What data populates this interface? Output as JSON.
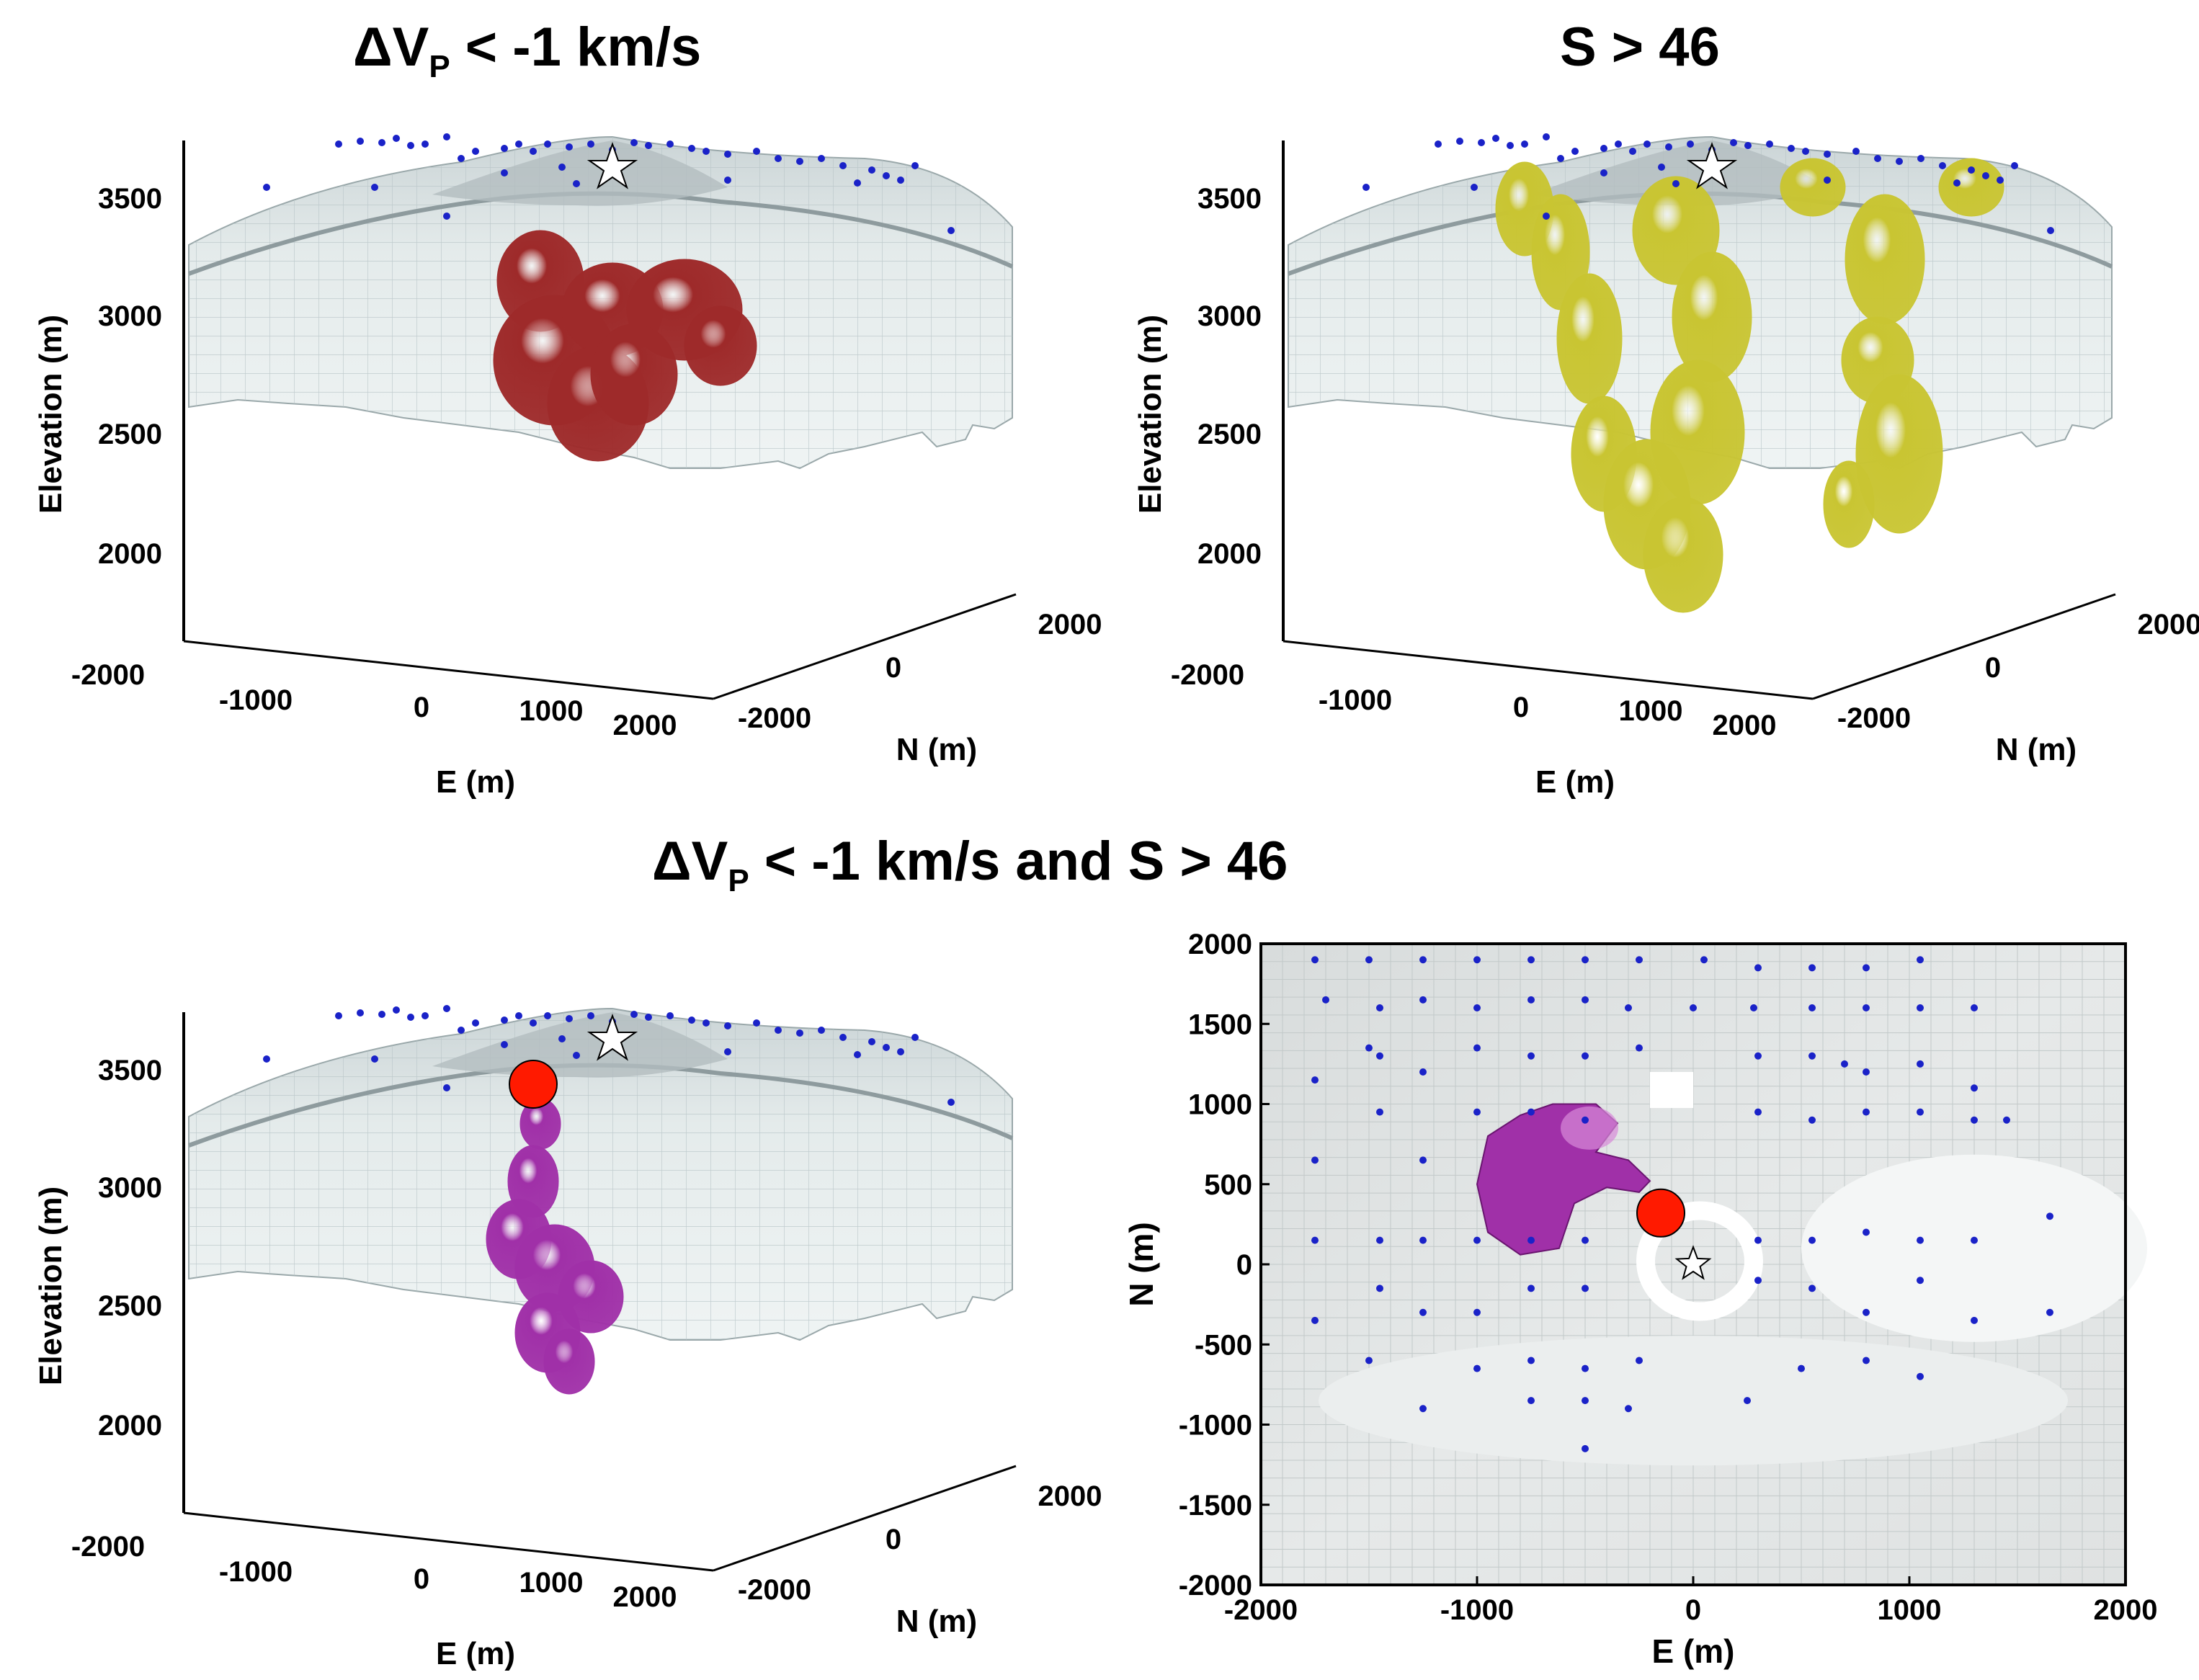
{
  "titles": {
    "top_left": "ΔV",
    "top_left_sub": "P",
    "top_left_rest": " < -1 km/s",
    "top_right": "S > 46",
    "bottom_left": "ΔV",
    "bottom_left_sub": "P",
    "bottom_left_rest": " < -1 km/s and S > 46"
  },
  "panels_3d": [
    {
      "id": "tl",
      "ylabel": "Elevation (m)",
      "xlabel": "E (m)",
      "nlabel": "N (m)",
      "z_ticks": [
        "3500",
        "3000",
        "2500",
        "2000"
      ],
      "e_ticks": [
        "-2000",
        "-1000",
        "0",
        "1000",
        "2000"
      ],
      "n_ticks": [
        "-2000",
        "0",
        "2000"
      ],
      "body_color": "#9e2a2a",
      "body_label": "low-velocity-body"
    },
    {
      "id": "tr",
      "ylabel": "Elevation (m)",
      "xlabel": "E (m)",
      "nlabel": "N (m)",
      "z_ticks": [
        "3500",
        "3000",
        "2500",
        "2000"
      ],
      "e_ticks": [
        "-2000",
        "-1000",
        "0",
        "1000",
        "2000"
      ],
      "n_ticks": [
        "-2000",
        "0",
        "2000"
      ],
      "body_color": "#c9c532",
      "body_label": "high-s-body"
    },
    {
      "id": "bl",
      "ylabel": "Elevation (m)",
      "xlabel": "E (m)",
      "nlabel": "N (m)",
      "z_ticks": [
        "3500",
        "3000",
        "2500",
        "2000"
      ],
      "e_ticks": [
        "-2000",
        "-1000",
        "0",
        "1000",
        "2000"
      ],
      "n_ticks": [
        "-2000",
        "0",
        "2000"
      ],
      "body_color": "#a030a8",
      "body_label": "combined-body"
    }
  ],
  "map_panel": {
    "xlabel": "E (m)",
    "ylabel": "N (m)",
    "x_ticks": [
      "-2000",
      "-1000",
      "0",
      "1000",
      "2000"
    ],
    "y_ticks": [
      "2000",
      "1500",
      "1000",
      "500",
      "0",
      "-500",
      "-1000",
      "-1500",
      "-2000"
    ],
    "xlim": [
      -2000,
      2000
    ],
    "ylim": [
      -2000,
      2000
    ],
    "stations": [
      [
        -1750,
        1900
      ],
      [
        -1500,
        1900
      ],
      [
        -1250,
        1900
      ],
      [
        -1000,
        1900
      ],
      [
        -750,
        1900
      ],
      [
        -500,
        1900
      ],
      [
        -250,
        1900
      ],
      [
        50,
        1900
      ],
      [
        300,
        1850
      ],
      [
        550,
        1850
      ],
      [
        800,
        1850
      ],
      [
        1050,
        1900
      ],
      [
        -1700,
        1650
      ],
      [
        -1450,
        1600
      ],
      [
        -1250,
        1650
      ],
      [
        -1000,
        1600
      ],
      [
        -750,
        1650
      ],
      [
        -500,
        1650
      ],
      [
        -300,
        1600
      ],
      [
        0,
        1600
      ],
      [
        280,
        1600
      ],
      [
        550,
        1600
      ],
      [
        800,
        1600
      ],
      [
        1050,
        1600
      ],
      [
        1300,
        1600
      ],
      [
        -1750,
        1150
      ],
      [
        -1500,
        1350
      ],
      [
        -1450,
        1300
      ],
      [
        -1250,
        1200
      ],
      [
        -1000,
        1350
      ],
      [
        -750,
        1300
      ],
      [
        -500,
        1300
      ],
      [
        -250,
        1350
      ],
      [
        300,
        1300
      ],
      [
        550,
        1300
      ],
      [
        700,
        1250
      ],
      [
        800,
        1200
      ],
      [
        1050,
        1250
      ],
      [
        1300,
        1100
      ],
      [
        -1750,
        650
      ],
      [
        -1450,
        950
      ],
      [
        -1250,
        650
      ],
      [
        -1000,
        950
      ],
      [
        -750,
        950
      ],
      [
        -500,
        900
      ],
      [
        300,
        950
      ],
      [
        550,
        900
      ],
      [
        800,
        950
      ],
      [
        1050,
        950
      ],
      [
        1300,
        900
      ],
      [
        1450,
        900
      ],
      [
        -1750,
        150
      ],
      [
        -1450,
        150
      ],
      [
        -1250,
        150
      ],
      [
        -1000,
        150
      ],
      [
        -750,
        150
      ],
      [
        -500,
        150
      ],
      [
        300,
        150
      ],
      [
        550,
        150
      ],
      [
        800,
        200
      ],
      [
        1050,
        150
      ],
      [
        1300,
        150
      ],
      [
        1650,
        300
      ],
      [
        -1750,
        -350
      ],
      [
        -1450,
        -150
      ],
      [
        -1250,
        -300
      ],
      [
        -1000,
        -300
      ],
      [
        -750,
        -150
      ],
      [
        -500,
        -150
      ],
      [
        300,
        -100
      ],
      [
        550,
        -150
      ],
      [
        800,
        -300
      ],
      [
        1050,
        -100
      ],
      [
        1300,
        -350
      ],
      [
        1650,
        -300
      ],
      [
        -1500,
        -600
      ],
      [
        -1000,
        -650
      ],
      [
        -750,
        -600
      ],
      [
        -500,
        -650
      ],
      [
        -250,
        -600
      ],
      [
        500,
        -650
      ],
      [
        800,
        -600
      ],
      [
        1050,
        -700
      ],
      [
        -1250,
        -900
      ],
      [
        -750,
        -850
      ],
      [
        -500,
        -850
      ],
      [
        -300,
        -900
      ],
      [
        250,
        -850
      ],
      [
        -500,
        -1150
      ]
    ],
    "vent_star": [
      0,
      0
    ],
    "red_marker": [
      -150,
      320
    ],
    "grid_on": true
  },
  "colors": {
    "red_body": "#9e2a2a",
    "yellow_body": "#c9c532",
    "magenta_body": "#a030a8",
    "station_dot": "#1a22c8",
    "marker_red": "#ff1a00"
  }
}
